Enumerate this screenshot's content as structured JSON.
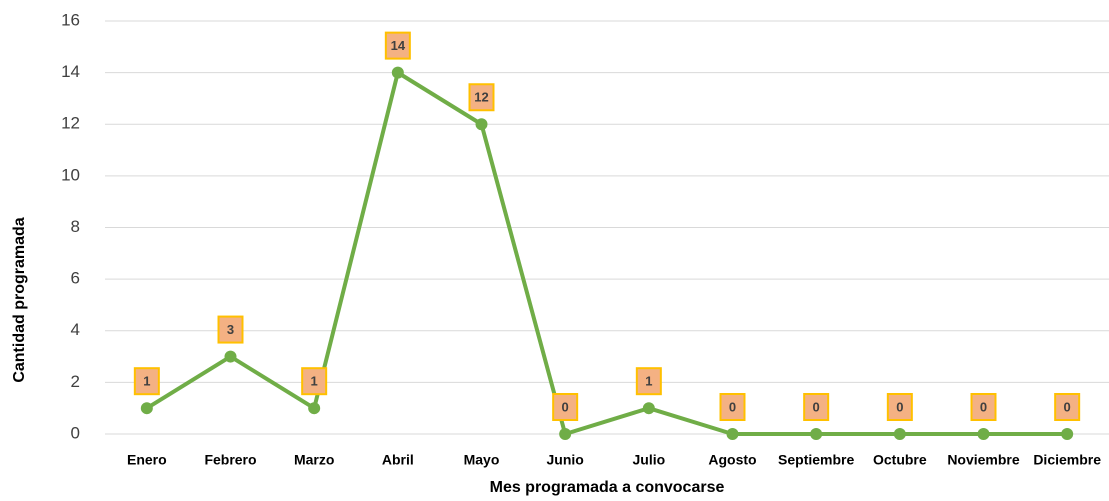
{
  "chart_data": {
    "type": "line",
    "xlabel": "Mes programada a convocarse",
    "ylabel": "Cantidad programada",
    "categories": [
      "Enero",
      "Febrero",
      "Marzo",
      "Abril",
      "Mayo",
      "Junio",
      "Julio",
      "Agosto",
      "Septiembre",
      "Octubre",
      "Noviembre",
      "Diciembre"
    ],
    "values": [
      1,
      3,
      1,
      14,
      12,
      0,
      1,
      0,
      0,
      0,
      0,
      0
    ],
    "color": "#70ad47",
    "label_fill": "#f4b183",
    "label_border": "#ffc000",
    "ylim": [
      0,
      16
    ],
    "yticks": [
      0,
      2,
      4,
      6,
      8,
      10,
      12,
      14,
      16
    ],
    "grid": true
  }
}
